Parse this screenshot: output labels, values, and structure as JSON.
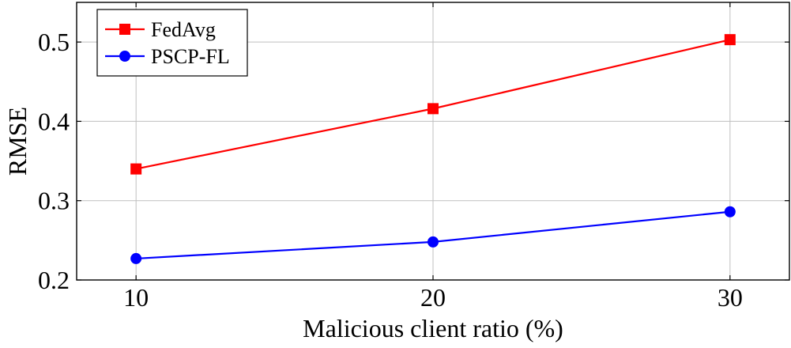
{
  "chart_data": {
    "type": "line",
    "title": "",
    "xlabel": "Malicious client ratio (%)",
    "ylabel": "RMSE",
    "x": [
      10,
      20,
      30
    ],
    "x_ticks": [
      "10",
      "20",
      "30"
    ],
    "xlim": [
      8,
      32
    ],
    "ylim": [
      0.2,
      0.55
    ],
    "y_ticks": [
      "0.2",
      "0.3",
      "0.4",
      "0.5"
    ],
    "grid": true,
    "legend_position": "top-left",
    "series": [
      {
        "name": "FedAvg",
        "values": [
          0.34,
          0.416,
          0.503
        ],
        "color": "#ff0000",
        "marker": "square"
      },
      {
        "name": "PSCP-FL",
        "values": [
          0.227,
          0.248,
          0.286
        ],
        "color": "#0000ff",
        "marker": "circle"
      }
    ]
  }
}
